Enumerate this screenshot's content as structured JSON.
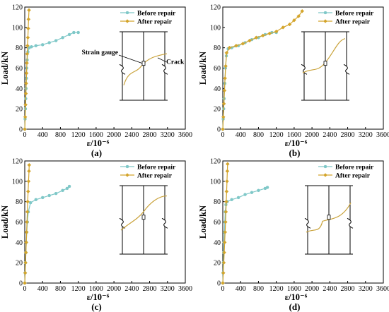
{
  "colors": {
    "before": "#7FC8C8",
    "after": "#D4A52C",
    "crack": "#C9A23A",
    "frame": "#000000"
  },
  "chart_data": [
    {
      "type": "line",
      "panel_label": "(a)",
      "xlabel": "ε/10⁻⁶",
      "ylabel": "Load/kN",
      "xlim": [
        0,
        3600
      ],
      "ylim": [
        0,
        120
      ],
      "xticks": [
        0,
        400,
        800,
        1200,
        1600,
        2000,
        2400,
        2800,
        3200,
        3600
      ],
      "yticks": [
        0,
        20,
        40,
        60,
        80,
        100,
        120
      ],
      "legend_position": "top-right",
      "grid": false,
      "inset_labels": [
        "Strain gauge",
        "Crack"
      ],
      "series": [
        {
          "name": "Before repair",
          "color": "before",
          "x": [
            0,
            8,
            15,
            22,
            30,
            38,
            45,
            55,
            70,
            100,
            150,
            250,
            400,
            550,
            700,
            850,
            1000,
            1100,
            1200
          ],
          "y": [
            0,
            10,
            20,
            30,
            40,
            50,
            60,
            68,
            76,
            80,
            81,
            82,
            83,
            85,
            87,
            90,
            93,
            95,
            95
          ]
        },
        {
          "name": "After repair",
          "color": "after",
          "x": [
            0,
            10,
            18,
            25,
            32,
            40,
            48,
            55,
            62,
            70,
            78,
            85,
            95
          ],
          "y": [
            0,
            12,
            24,
            35,
            45,
            55,
            65,
            74,
            82,
            90,
            99,
            108,
            117
          ]
        }
      ]
    },
    {
      "type": "line",
      "panel_label": "(b)",
      "xlabel": "ε/10⁻⁶",
      "ylabel": "Load/kN",
      "xlim": [
        0,
        3600
      ],
      "ylim": [
        0,
        120
      ],
      "xticks": [
        0,
        400,
        800,
        1200,
        1600,
        2000,
        2400,
        2800,
        3200,
        3600
      ],
      "yticks": [
        0,
        20,
        40,
        60,
        80,
        100,
        120
      ],
      "legend_position": "top-right",
      "grid": false,
      "series": [
        {
          "name": "Before repair",
          "color": "before",
          "x": [
            0,
            10,
            20,
            30,
            45,
            60,
            80,
            120,
            200,
            350,
            500,
            650,
            800,
            950,
            1100,
            1200
          ],
          "y": [
            0,
            10,
            20,
            30,
            45,
            60,
            72,
            79,
            80,
            82,
            85,
            88,
            90,
            93,
            95,
            95
          ]
        },
        {
          "name": "After repair",
          "color": "after",
          "x": [
            0,
            12,
            25,
            38,
            50,
            65,
            85,
            150,
            300,
            450,
            600,
            750,
            900,
            1050,
            1200,
            1350,
            1500,
            1600,
            1700,
            1780
          ],
          "y": [
            0,
            12,
            25,
            38,
            50,
            62,
            75,
            80,
            82,
            84,
            87,
            90,
            92,
            94,
            96,
            100,
            103,
            107,
            111,
            116
          ]
        }
      ]
    },
    {
      "type": "line",
      "panel_label": "(c)",
      "xlabel": "ε/10⁻⁶",
      "ylabel": "Load/kN",
      "xlim": [
        0,
        3600
      ],
      "ylim": [
        0,
        120
      ],
      "xticks": [
        0,
        400,
        800,
        1200,
        1600,
        2000,
        2400,
        2800,
        3200,
        3600
      ],
      "yticks": [
        0,
        20,
        40,
        60,
        80,
        100,
        120
      ],
      "legend_position": "top-right",
      "grid": false,
      "series": [
        {
          "name": "Before repair",
          "color": "before",
          "x": [
            0,
            8,
            16,
            25,
            35,
            45,
            60,
            80,
            130,
            250,
            400,
            550,
            700,
            850,
            950,
            1000
          ],
          "y": [
            0,
            10,
            20,
            30,
            40,
            50,
            60,
            70,
            79,
            82,
            84,
            86,
            88,
            91,
            93,
            95
          ]
        },
        {
          "name": "After repair",
          "color": "after",
          "x": [
            0,
            10,
            18,
            26,
            34,
            42,
            50,
            58,
            66,
            75,
            85,
            95,
            100
          ],
          "y": [
            0,
            10,
            20,
            30,
            40,
            50,
            60,
            70,
            80,
            90,
            100,
            110,
            116
          ]
        }
      ]
    },
    {
      "type": "line",
      "panel_label": "(d)",
      "xlabel": "ε/10⁻⁶",
      "ylabel": "Load/kN",
      "xlim": [
        0,
        3600
      ],
      "ylim": [
        0,
        120
      ],
      "xticks": [
        0,
        400,
        800,
        1200,
        1600,
        2000,
        2400,
        2800,
        3200,
        3600
      ],
      "yticks": [
        0,
        20,
        40,
        60,
        80,
        100,
        120
      ],
      "legend_position": "top-right",
      "grid": false,
      "series": [
        {
          "name": "Before repair",
          "color": "before",
          "x": [
            0,
            6,
            12,
            20,
            28,
            36,
            45,
            55,
            70,
            100,
            200,
            350,
            500,
            650,
            800,
            950,
            1000
          ],
          "y": [
            0,
            10,
            20,
            30,
            40,
            50,
            60,
            70,
            77,
            80,
            82,
            84,
            87,
            89,
            91,
            93,
            94
          ]
        },
        {
          "name": "After repair",
          "color": "after",
          "x": [
            0,
            12,
            22,
            32,
            42,
            52,
            62,
            70,
            78,
            86,
            94,
            102,
            108
          ],
          "y": [
            0,
            10,
            20,
            30,
            40,
            50,
            60,
            70,
            80,
            90,
            100,
            110,
            117
          ]
        }
      ]
    }
  ]
}
